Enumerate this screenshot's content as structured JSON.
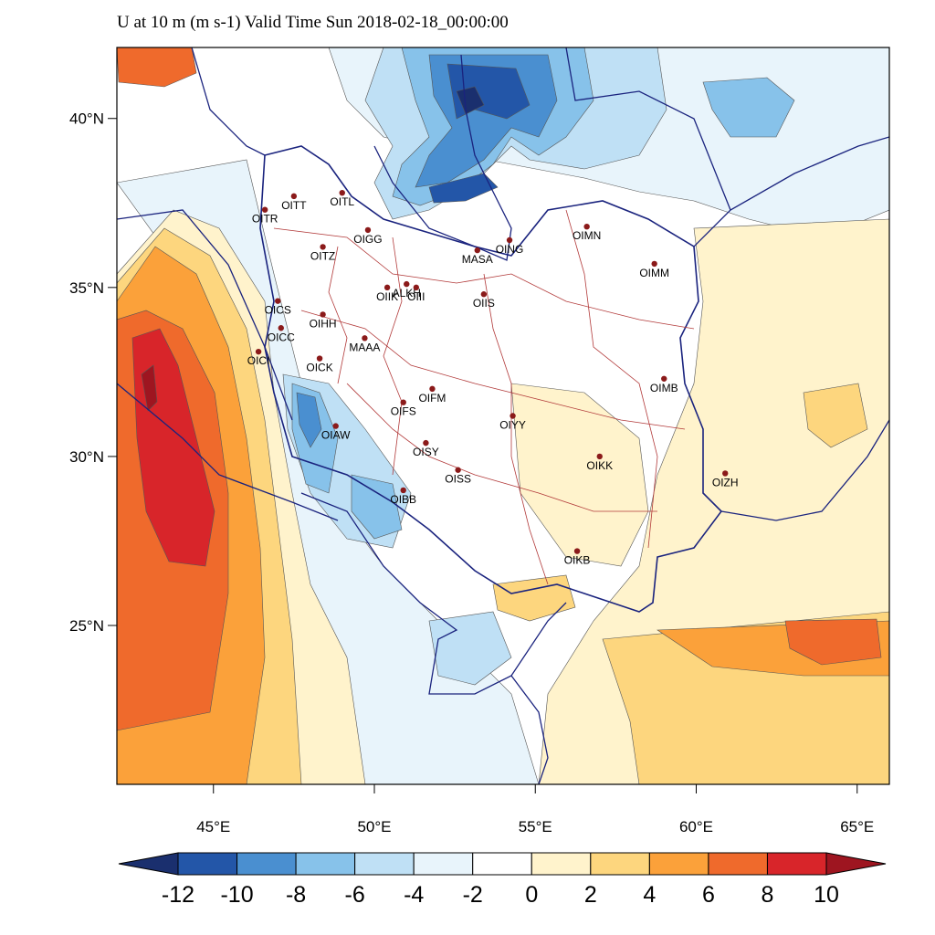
{
  "title": "U at 10 m (m s-1) Valid Time Sun 2018-02-18_00:00:00",
  "map": {
    "lon_range": [
      42,
      66
    ],
    "lat_range": [
      20.3,
      42.1
    ],
    "lat_ticks": [
      {
        "value": 25,
        "label": "25°N"
      },
      {
        "value": 30,
        "label": "30°N"
      },
      {
        "value": 35,
        "label": "35°N"
      },
      {
        "value": 40,
        "label": "40°N"
      }
    ],
    "lon_ticks": [
      {
        "value": 45,
        "label": "45°E"
      },
      {
        "value": 50,
        "label": "50°E"
      },
      {
        "value": 55,
        "label": "55°E"
      },
      {
        "value": 60,
        "label": "60°E"
      },
      {
        "value": 65,
        "label": "65°E"
      }
    ],
    "stations": [
      {
        "name": "OITT",
        "lon": 47.5,
        "lat": 37.7
      },
      {
        "name": "OITR",
        "lon": 46.6,
        "lat": 37.3
      },
      {
        "name": "OITL",
        "lon": 49.0,
        "lat": 37.8
      },
      {
        "name": "OIGG",
        "lon": 49.8,
        "lat": 36.7
      },
      {
        "name": "OITZ",
        "lon": 48.4,
        "lat": 36.2
      },
      {
        "name": "OING",
        "lon": 54.2,
        "lat": 36.4
      },
      {
        "name": "MASA",
        "lon": 53.2,
        "lat": 36.1
      },
      {
        "name": "OIMN",
        "lon": 56.6,
        "lat": 36.8
      },
      {
        "name": "OIMM",
        "lon": 58.7,
        "lat": 35.7
      },
      {
        "name": "OIIK",
        "lon": 50.4,
        "lat": 35.0
      },
      {
        "name": "ALKH",
        "lon": 51.0,
        "lat": 35.1
      },
      {
        "name": "OIII",
        "lon": 51.3,
        "lat": 35.0
      },
      {
        "name": "OIIS",
        "lon": 53.4,
        "lat": 34.8
      },
      {
        "name": "OICS",
        "lon": 47.0,
        "lat": 34.6
      },
      {
        "name": "OIHH",
        "lon": 48.4,
        "lat": 34.2
      },
      {
        "name": "OICC",
        "lon": 47.1,
        "lat": 33.8
      },
      {
        "name": "MAAA",
        "lon": 49.7,
        "lat": 33.5
      },
      {
        "name": "OICI",
        "lon": 46.4,
        "lat": 33.1
      },
      {
        "name": "OICK",
        "lon": 48.3,
        "lat": 32.9
      },
      {
        "name": "OIMB",
        "lon": 59.0,
        "lat": 32.3
      },
      {
        "name": "OIFM",
        "lon": 51.8,
        "lat": 32.0
      },
      {
        "name": "OIFS",
        "lon": 50.9,
        "lat": 31.6
      },
      {
        "name": "OIYY",
        "lon": 54.3,
        "lat": 31.2
      },
      {
        "name": "OIAW",
        "lon": 48.8,
        "lat": 30.9
      },
      {
        "name": "OISY",
        "lon": 51.6,
        "lat": 30.4
      },
      {
        "name": "OIKK",
        "lon": 57.0,
        "lat": 30.0
      },
      {
        "name": "OIZH",
        "lon": 60.9,
        "lat": 29.5
      },
      {
        "name": "OISS",
        "lon": 52.6,
        "lat": 29.6
      },
      {
        "name": "OIBB",
        "lon": 50.9,
        "lat": 29.0
      },
      {
        "name": "OIKB",
        "lon": 56.3,
        "lat": 27.2
      }
    ]
  },
  "colorbar": {
    "colors": [
      "#1a2f6e",
      "#2356a8",
      "#4a8fd0",
      "#87c2ea",
      "#bfe0f5",
      "#e8f4fb",
      "#ffffff",
      "#fff3cc",
      "#fdd67e",
      "#fba13a",
      "#ef6a2c",
      "#d8252a",
      "#9e1520"
    ],
    "labels": [
      "-12",
      "-10",
      "-8",
      "-6",
      "-4",
      "-2",
      "0",
      "2",
      "4",
      "6",
      "8",
      "10"
    ]
  }
}
